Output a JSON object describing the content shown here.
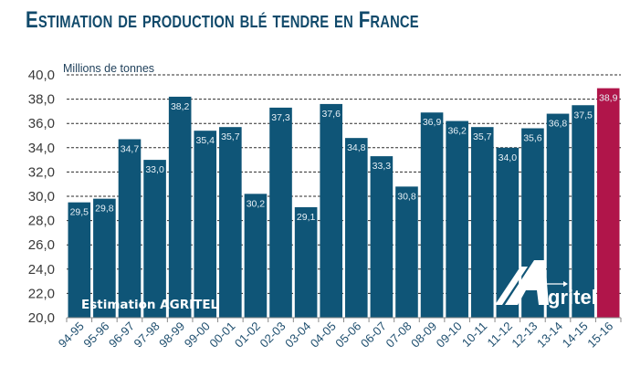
{
  "header": {
    "title": "Estimation de production blé tendre en France"
  },
  "chart_data": {
    "type": "bar",
    "title": "Estimation de production blé tendre en France",
    "ylabel": "Millions de tonnes",
    "xlabel": "",
    "ylim": [
      20,
      40
    ],
    "ytick_step": 2,
    "yticks": [
      "20,0",
      "22,0",
      "24,0",
      "26,0",
      "28,0",
      "30,0",
      "32,0",
      "34,0",
      "36,0",
      "38,0",
      "40,0"
    ],
    "grid": "horizontal-dashed",
    "categories": [
      "94-95",
      "95-96",
      "96-97",
      "97-98",
      "98-99",
      "99-00",
      "00-01",
      "01-02",
      "02-03",
      "03-04",
      "04-05",
      "05-06",
      "06-07",
      "07-08",
      "08-09",
      "09-10",
      "10-11",
      "11-12",
      "12-13",
      "13-14",
      "14-15",
      "15-16"
    ],
    "values": [
      29.5,
      29.8,
      34.7,
      33.0,
      38.2,
      35.4,
      35.7,
      30.2,
      37.3,
      29.1,
      37.6,
      34.8,
      33.3,
      30.8,
      36.9,
      36.2,
      35.7,
      34.0,
      35.6,
      36.8,
      37.5,
      38.9
    ],
    "value_labels": [
      "29,5",
      "29,8",
      "34,7",
      "33,0",
      "38,2",
      "35,4",
      "35,7",
      "30,2",
      "37,3",
      "29,1",
      "37,6",
      "34,8",
      "33,3",
      "30,8",
      "36,9",
      "36,2",
      "35,7",
      "34,0",
      "35,6",
      "36,8",
      "37,5",
      "38,9"
    ],
    "highlight_index": 21,
    "colors": {
      "bar": "#0f5577",
      "highlight": "#b0154a",
      "grid": "#2b2b2b",
      "title": "#114a6b"
    },
    "annotation": "Estimation AGRITEL",
    "logo": "Agritel"
  }
}
